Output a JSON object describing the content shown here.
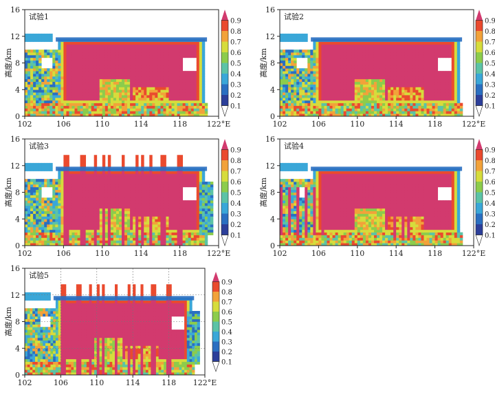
{
  "chart_data": [
    {
      "type": "heatmap",
      "title": "试验1",
      "ylabel": "高度/km",
      "x_ticks": [
        "102",
        "106",
        "110",
        "114",
        "118",
        "122°E"
      ],
      "y_ticks": [
        "0",
        "4",
        "8",
        "12",
        "16"
      ],
      "xlim": [
        102,
        122
      ],
      "ylim": [
        0,
        16
      ],
      "colorbar": [
        "0.1",
        "0.2",
        "0.3",
        "0.4",
        "0.5",
        "0.6",
        "0.7",
        "0.8",
        "0.9"
      ],
      "variant": "smooth"
    },
    {
      "type": "heatmap",
      "title": "试验2",
      "ylabel": "高度/km",
      "x_ticks": [
        "102",
        "106",
        "110",
        "114",
        "118",
        "122°E"
      ],
      "y_ticks": [
        "0",
        "4",
        "8",
        "12",
        "16"
      ],
      "xlim": [
        102,
        122
      ],
      "ylim": [
        0,
        16
      ],
      "colorbar": [
        "0.1",
        "0.2",
        "0.3",
        "0.4",
        "0.5",
        "0.6",
        "0.7",
        "0.8",
        "0.9"
      ],
      "variant": "smooth"
    },
    {
      "type": "heatmap",
      "title": "试验3",
      "ylabel": "高度/km",
      "x_ticks": [
        "102",
        "106",
        "110",
        "114",
        "118",
        "122°E"
      ],
      "y_ticks": [
        "0",
        "4",
        "8",
        "12",
        "16"
      ],
      "xlim": [
        102,
        122
      ],
      "ylim": [
        0,
        16
      ],
      "colorbar": [
        "0.1",
        "0.2",
        "0.3",
        "0.4",
        "0.5",
        "0.6",
        "0.7",
        "0.8",
        "0.9"
      ],
      "variant": "striped"
    },
    {
      "type": "heatmap",
      "title": "试验4",
      "ylabel": "高度/km",
      "x_ticks": [
        "102",
        "106",
        "110",
        "114",
        "118",
        "122°E"
      ],
      "y_ticks": [
        "0",
        "4",
        "8",
        "12",
        "16"
      ],
      "xlim": [
        102,
        122
      ],
      "ylim": [
        0,
        16
      ],
      "colorbar": [
        "0.1",
        "0.2",
        "0.3",
        "0.4",
        "0.5",
        "0.6",
        "0.7",
        "0.8",
        "0.9"
      ],
      "variant": "spikes"
    },
    {
      "type": "heatmap",
      "title": "试验5",
      "ylabel": "高度/km",
      "x_ticks": [
        "102",
        "106",
        "110",
        "114",
        "118",
        "122°E"
      ],
      "y_ticks": [
        "0",
        "4",
        "8",
        "12",
        "16"
      ],
      "xlim": [
        102,
        122
      ],
      "ylim": [
        0,
        16
      ],
      "colorbar": [
        "0.1",
        "0.2",
        "0.3",
        "0.4",
        "0.5",
        "0.6",
        "0.7",
        "0.8",
        "0.9"
      ],
      "variant": "striped-grid"
    }
  ],
  "colors": {
    "c01": "#2c3f9a",
    "c02": "#2a6fc1",
    "c03": "#3aa7d8",
    "c04": "#5cc3a6",
    "c05": "#8ccc4c",
    "c06": "#d6dc3c",
    "c07": "#f2a23a",
    "c08": "#ea4a2e",
    "c09": "#d23a6e",
    "c00": "#ffffff"
  }
}
